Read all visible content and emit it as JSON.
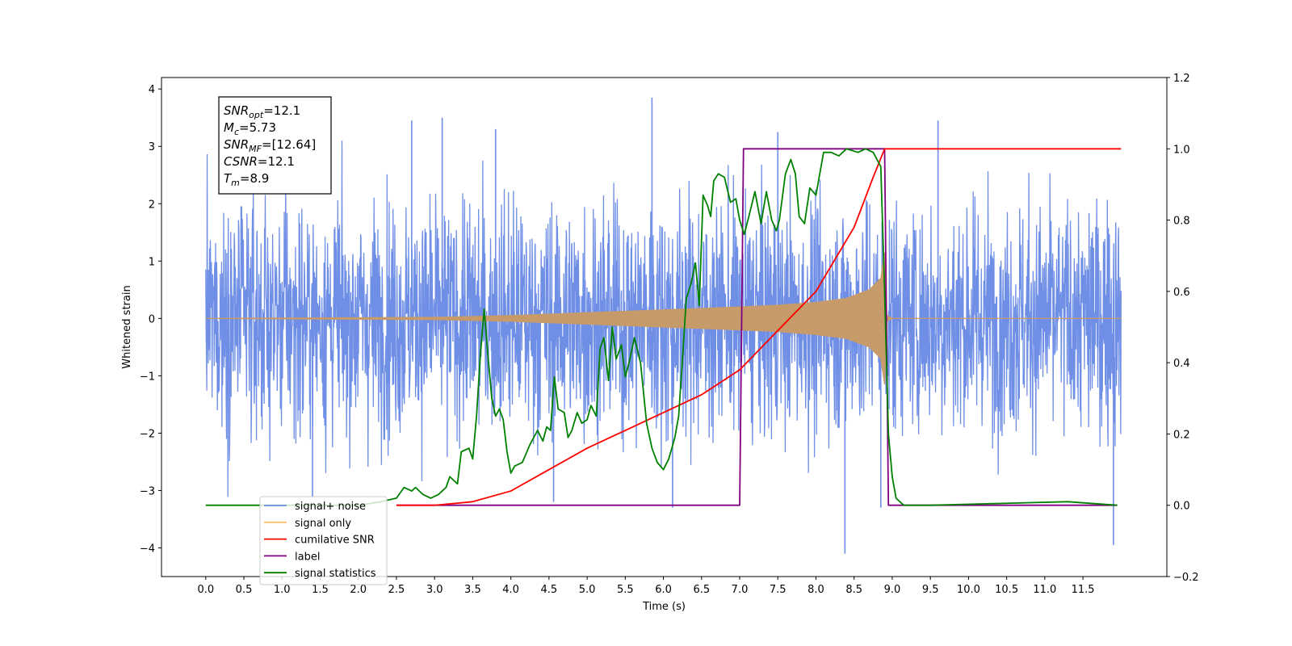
{
  "chart_data": {
    "type": "line",
    "xlabel": "Time (s)",
    "ylabel_left": "Whitened strain",
    "ylabel_right": "",
    "xlim": [
      -0.58,
      12.6
    ],
    "ylim_left": [
      -4.5,
      4.2
    ],
    "ylim_right": [
      -0.2,
      1.2
    ],
    "x_ticks": [
      "0.0",
      "0.5",
      "1.0",
      "1.5",
      "2.0",
      "2.5",
      "3.0",
      "3.5",
      "4.0",
      "4.5",
      "5.0",
      "5.5",
      "6.0",
      "6.5",
      "7.0",
      "7.5",
      "8.0",
      "8.5",
      "9.0",
      "9.5",
      "10.0",
      "10.5",
      "11.0",
      "11.5"
    ],
    "y_ticks_left": [
      "4",
      "3",
      "2",
      "1",
      "0",
      "-1",
      "-2",
      "-3",
      "-4"
    ],
    "y_ticks_right": [
      "1.2",
      "1.0",
      "0.8",
      "0.6",
      "0.4",
      "0.2",
      "0.0",
      "-0.2"
    ],
    "grid": false,
    "legend_position": "lower-left",
    "annotation": {
      "lines": [
        {
          "label": "SNR",
          "sub": "opt",
          "value": "=12.1"
        },
        {
          "label": "M",
          "sub": "c",
          "value": "=5.73"
        },
        {
          "label": "SNR",
          "sub": "MF",
          "value": "=[12.64]"
        },
        {
          "label": "CSNR",
          "sub": "",
          "value": "=12.1"
        },
        {
          "label": "T",
          "sub": "m",
          "value": "=8.9"
        }
      ]
    },
    "noise": {
      "x_range": [
        0.0,
        12.0
      ],
      "typical_amplitude": 2.5,
      "spikes": [
        {
          "x": 5.85,
          "y": 3.85
        },
        {
          "x": 3.1,
          "y": 3.5
        },
        {
          "x": 2.7,
          "y": 3.45
        },
        {
          "x": 9.6,
          "y": 3.45
        },
        {
          "x": 7.5,
          "y": 3.25
        },
        {
          "x": 3.8,
          "y": 3.3
        },
        {
          "x": 8.38,
          "y": -4.1
        },
        {
          "x": 11.9,
          "y": -3.95
        },
        {
          "x": 8.85,
          "y": -3.3
        },
        {
          "x": 6.12,
          "y": -3.3
        },
        {
          "x": 4.56,
          "y": -3.2
        },
        {
          "x": 1.4,
          "y": -3.1
        }
      ]
    },
    "series": [
      {
        "name": "signal+ noise",
        "color": "#6f8fe6",
        "axis": "left",
        "kind": "noise"
      },
      {
        "name": "signal only",
        "color": "#c79a6a",
        "axis": "left",
        "kind": "chirp",
        "points": [
          [
            0.0,
            0.0
          ],
          [
            3.0,
            0.02
          ],
          [
            4.0,
            0.05
          ],
          [
            5.0,
            0.1
          ],
          [
            6.0,
            0.15
          ],
          [
            7.0,
            0.2
          ],
          [
            7.5,
            0.23
          ],
          [
            8.0,
            0.28
          ],
          [
            8.4,
            0.35
          ],
          [
            8.7,
            0.5
          ],
          [
            8.85,
            0.7
          ],
          [
            8.9,
            1.15
          ],
          [
            8.93,
            0.05
          ],
          [
            9.0,
            0.0
          ],
          [
            12.0,
            0.0
          ]
        ]
      },
      {
        "name": "cumilative SNR",
        "color": "#ff0000",
        "axis": "right",
        "points": [
          [
            2.5,
            0.0
          ],
          [
            3.0,
            0.0
          ],
          [
            3.5,
            0.01
          ],
          [
            4.0,
            0.04
          ],
          [
            4.5,
            0.1
          ],
          [
            5.0,
            0.16
          ],
          [
            5.5,
            0.21
          ],
          [
            6.0,
            0.26
          ],
          [
            6.5,
            0.31
          ],
          [
            7.0,
            0.38
          ],
          [
            7.5,
            0.49
          ],
          [
            8.0,
            0.6
          ],
          [
            8.5,
            0.78
          ],
          [
            8.75,
            0.92
          ],
          [
            8.9,
            1.0
          ],
          [
            12.0,
            1.0
          ]
        ]
      },
      {
        "name": "label",
        "color": "#800080",
        "axis": "right",
        "points": [
          [
            2.5,
            0.0
          ],
          [
            7.0,
            0.0
          ],
          [
            7.05,
            1.0
          ],
          [
            8.9,
            1.0
          ],
          [
            8.95,
            0.0
          ],
          [
            11.95,
            0.0
          ]
        ]
      },
      {
        "name": "signal statistics",
        "color": "#008000",
        "axis": "right",
        "points": [
          [
            0.0,
            0.0
          ],
          [
            1.0,
            0.0
          ],
          [
            2.0,
            0.0
          ],
          [
            2.3,
            0.01
          ],
          [
            2.5,
            0.02
          ],
          [
            2.6,
            0.05
          ],
          [
            2.7,
            0.04
          ],
          [
            2.75,
            0.05
          ],
          [
            2.85,
            0.03
          ],
          [
            2.95,
            0.02
          ],
          [
            3.05,
            0.03
          ],
          [
            3.15,
            0.05
          ],
          [
            3.2,
            0.08
          ],
          [
            3.3,
            0.06
          ],
          [
            3.35,
            0.15
          ],
          [
            3.45,
            0.16
          ],
          [
            3.5,
            0.13
          ],
          [
            3.55,
            0.25
          ],
          [
            3.6,
            0.42
          ],
          [
            3.65,
            0.55
          ],
          [
            3.7,
            0.42
          ],
          [
            3.75,
            0.3
          ],
          [
            3.8,
            0.25
          ],
          [
            3.85,
            0.27
          ],
          [
            3.9,
            0.24
          ],
          [
            3.95,
            0.15
          ],
          [
            4.0,
            0.09
          ],
          [
            4.05,
            0.11
          ],
          [
            4.15,
            0.12
          ],
          [
            4.25,
            0.17
          ],
          [
            4.35,
            0.21
          ],
          [
            4.42,
            0.18
          ],
          [
            4.47,
            0.22
          ],
          [
            4.52,
            0.21
          ],
          [
            4.57,
            0.36
          ],
          [
            4.62,
            0.27
          ],
          [
            4.7,
            0.26
          ],
          [
            4.75,
            0.19
          ],
          [
            4.8,
            0.21
          ],
          [
            4.87,
            0.26
          ],
          [
            4.93,
            0.23
          ],
          [
            5.0,
            0.24
          ],
          [
            5.05,
            0.28
          ],
          [
            5.12,
            0.25
          ],
          [
            5.17,
            0.44
          ],
          [
            5.22,
            0.47
          ],
          [
            5.28,
            0.35
          ],
          [
            5.33,
            0.5
          ],
          [
            5.38,
            0.41
          ],
          [
            5.45,
            0.45
          ],
          [
            5.5,
            0.36
          ],
          [
            5.55,
            0.4
          ],
          [
            5.62,
            0.47
          ],
          [
            5.7,
            0.4
          ],
          [
            5.78,
            0.23
          ],
          [
            5.85,
            0.16
          ],
          [
            5.92,
            0.12
          ],
          [
            6.0,
            0.1
          ],
          [
            6.07,
            0.13
          ],
          [
            6.15,
            0.19
          ],
          [
            6.2,
            0.25
          ],
          [
            6.25,
            0.41
          ],
          [
            6.3,
            0.58
          ],
          [
            6.36,
            0.62
          ],
          [
            6.42,
            0.68
          ],
          [
            6.47,
            0.56
          ],
          [
            6.52,
            0.87
          ],
          [
            6.58,
            0.84
          ],
          [
            6.62,
            0.81
          ],
          [
            6.66,
            0.91
          ],
          [
            6.72,
            0.93
          ],
          [
            6.8,
            0.92
          ],
          [
            6.88,
            0.85
          ],
          [
            6.95,
            0.86
          ],
          [
            7.0,
            0.8
          ],
          [
            7.06,
            0.76
          ],
          [
            7.12,
            0.81
          ],
          [
            7.2,
            0.88
          ],
          [
            7.28,
            0.79
          ],
          [
            7.35,
            0.88
          ],
          [
            7.42,
            0.8
          ],
          [
            7.48,
            0.77
          ],
          [
            7.52,
            0.8
          ],
          [
            7.6,
            0.93
          ],
          [
            7.67,
            0.97
          ],
          [
            7.73,
            0.93
          ],
          [
            7.78,
            0.81
          ],
          [
            7.85,
            0.79
          ],
          [
            7.92,
            0.89
          ],
          [
            8.0,
            0.87
          ],
          [
            8.1,
            0.99
          ],
          [
            8.2,
            0.99
          ],
          [
            8.3,
            0.98
          ],
          [
            8.4,
            1.0
          ],
          [
            8.55,
            0.99
          ],
          [
            8.65,
            1.0
          ],
          [
            8.75,
            0.99
          ],
          [
            8.85,
            0.95
          ],
          [
            8.9,
            0.6
          ],
          [
            8.95,
            0.2
          ],
          [
            9.0,
            0.08
          ],
          [
            9.05,
            0.02
          ],
          [
            9.15,
            0.0
          ],
          [
            9.5,
            0.0
          ],
          [
            11.3,
            0.01
          ],
          [
            11.95,
            0.0
          ]
        ]
      }
    ]
  }
}
